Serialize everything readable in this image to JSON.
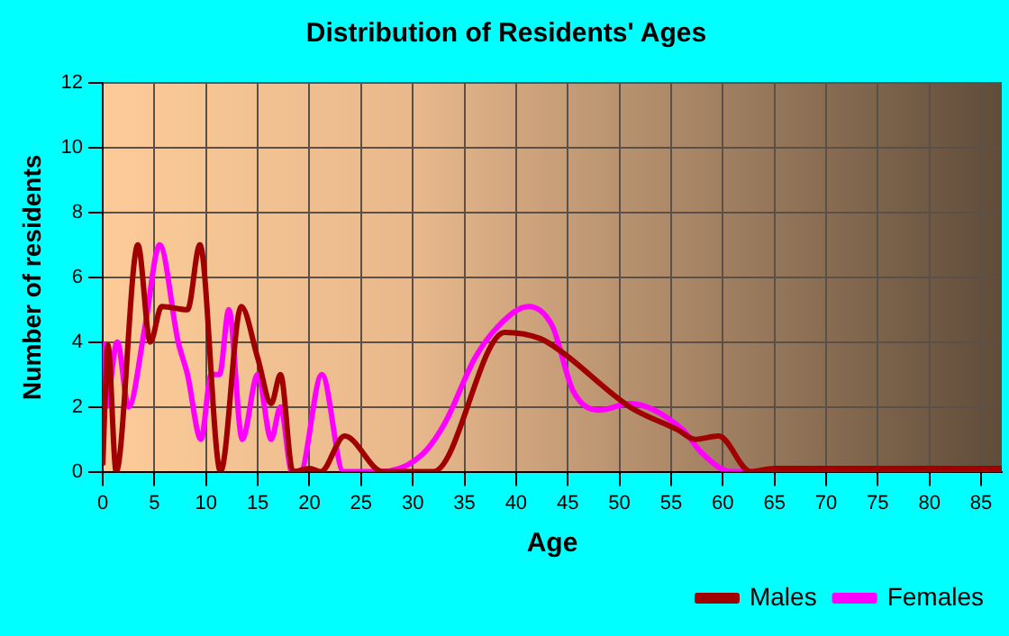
{
  "chart_data": {
    "type": "line",
    "title": "Distribution of Residents' Ages",
    "xlabel": "Age",
    "ylabel": "Number of residents",
    "xlim": [
      0,
      87
    ],
    "xticks": [
      0,
      5,
      10,
      15,
      20,
      25,
      30,
      35,
      40,
      45,
      50,
      55,
      60,
      65,
      70,
      75,
      80,
      85
    ],
    "ylim": [
      0,
      12
    ],
    "yticks": [
      0,
      2,
      4,
      6,
      8,
      10,
      12
    ],
    "grid": true,
    "legend": "bottom right",
    "marker": "none",
    "line_style": "solid",
    "series": [
      {
        "name": "Males",
        "color": "#a00000",
        "x": [
          0,
          0.5,
          1.3,
          3.4,
          4.6,
          5.7,
          8.2,
          9.4,
          11.4,
          13.4,
          15,
          16.3,
          17.2,
          18.4,
          20,
          21.1,
          23.4,
          27.1,
          32,
          38.9,
          42.4,
          44.4,
          51,
          55.6,
          57.3,
          59.6,
          62.7,
          65,
          87
        ],
        "values": [
          0.2,
          3.9,
          0,
          7,
          4,
          5.1,
          5,
          7,
          0,
          5.1,
          3.5,
          2.1,
          3,
          0,
          0.1,
          0,
          1.1,
          0,
          0,
          4.3,
          4.1,
          3.7,
          2,
          1.3,
          1,
          1.1,
          0,
          0.1,
          0.1
        ]
      },
      {
        "name": "Females",
        "color": "#ff00ff",
        "x": [
          0,
          0.3,
          1.4,
          2.5,
          4.1,
          5.5,
          7.3,
          8.2,
          9.5,
          10.5,
          11.3,
          12.2,
          13.5,
          15,
          16.3,
          17.2,
          18.3,
          19.1,
          21.2,
          23.3,
          26.9,
          30.8,
          33.1,
          36,
          38.3,
          41.2,
          43.5,
          45.5,
          48.1,
          51,
          56.1,
          57.9,
          60.8,
          87
        ],
        "values": [
          4,
          2,
          4,
          2,
          4.5,
          7,
          4,
          3,
          1,
          3,
          3,
          5,
          1,
          3,
          1,
          2,
          0,
          0,
          3,
          0,
          0,
          0.5,
          1.5,
          3.5,
          4.5,
          5.1,
          4.5,
          2.5,
          1.9,
          2.1,
          1.3,
          0.6,
          0,
          0
        ]
      }
    ]
  }
}
